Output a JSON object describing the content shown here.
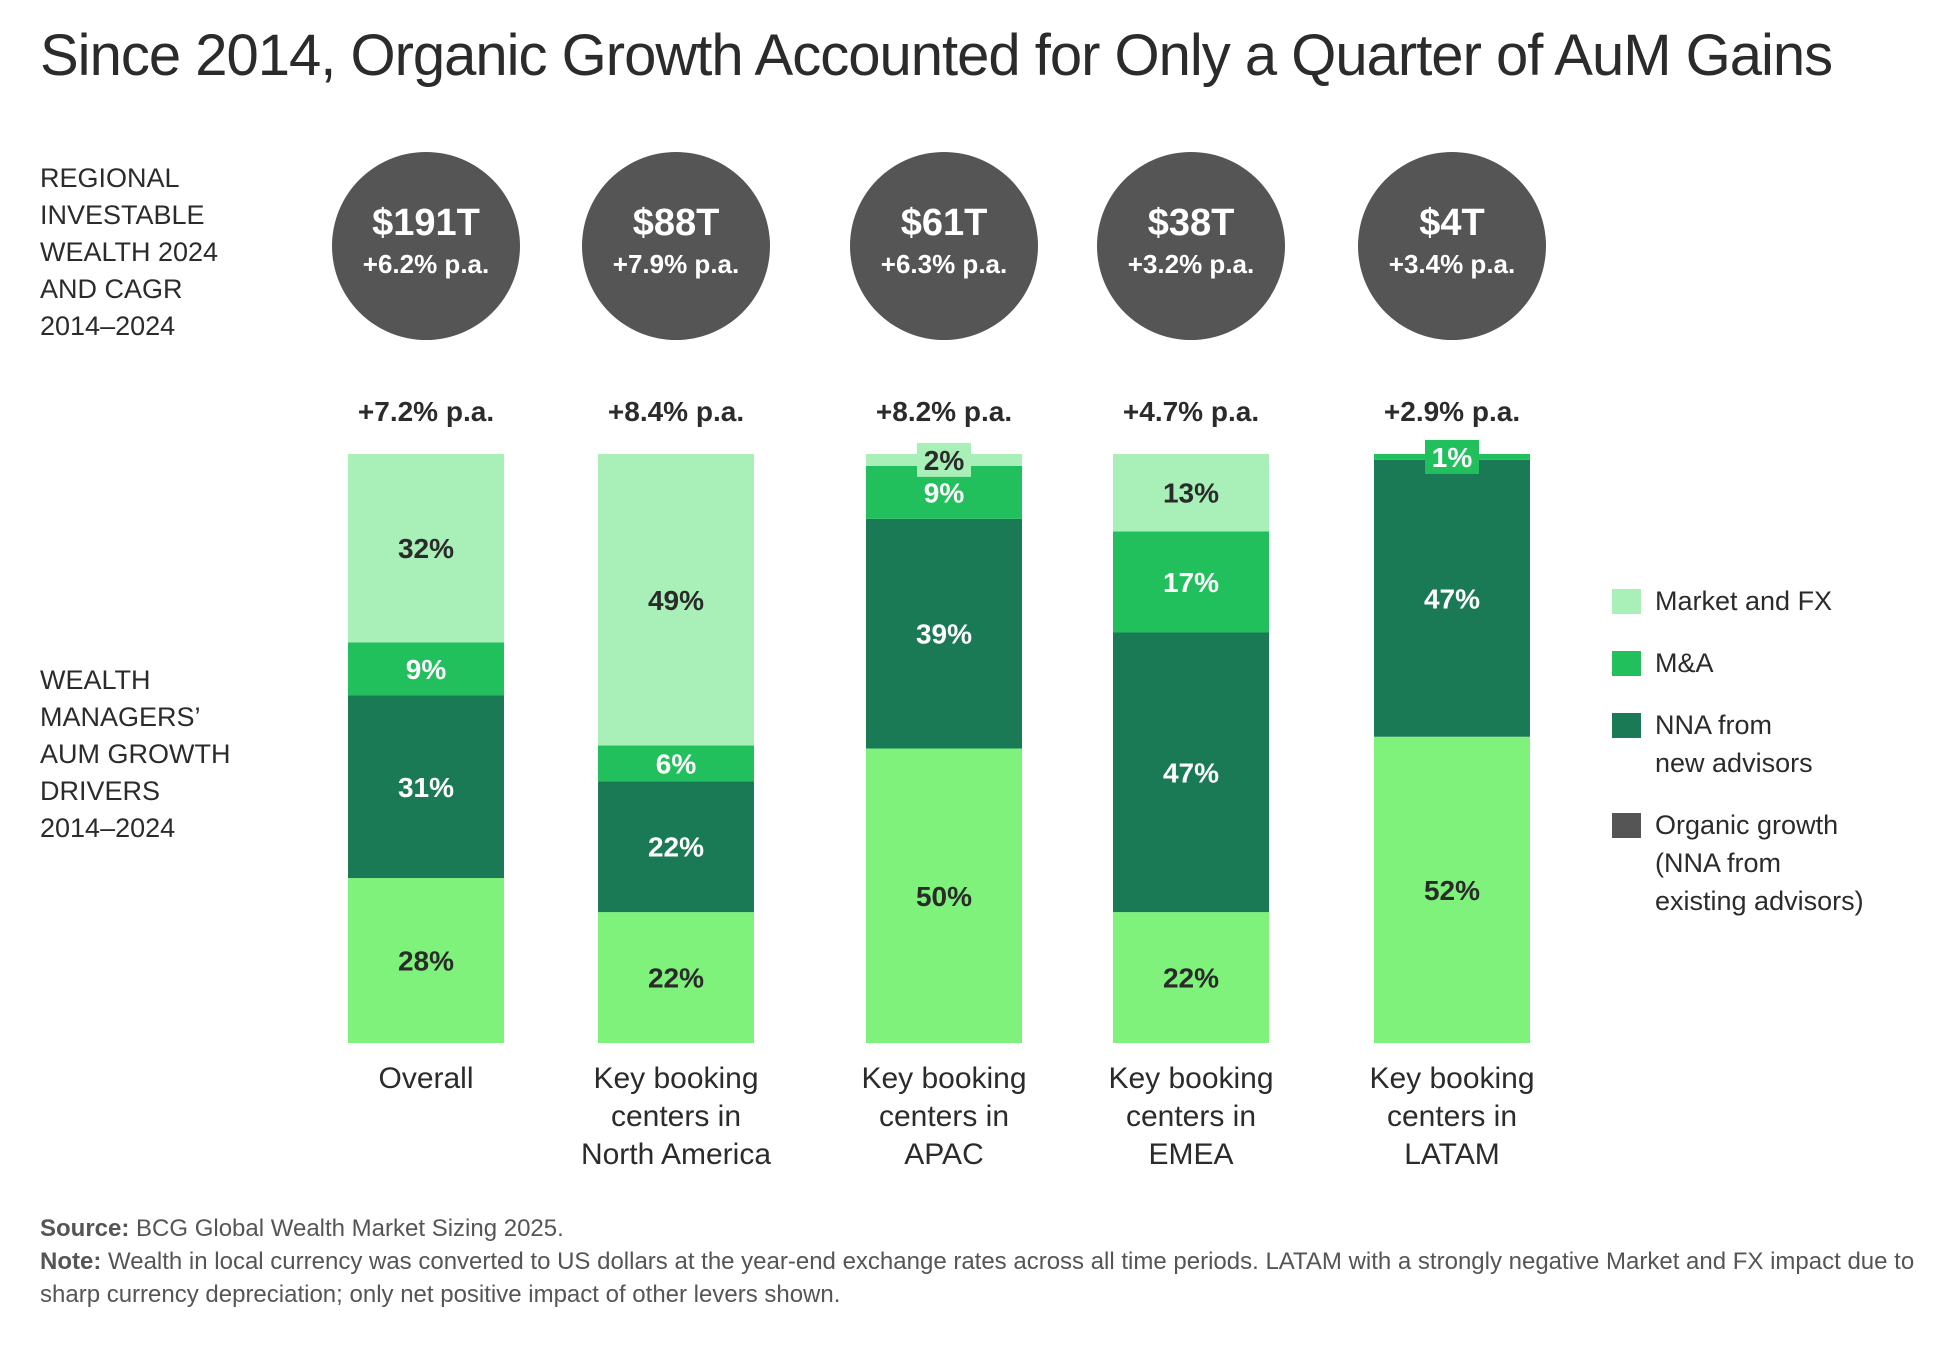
{
  "title": "Since 2014, Organic Growth Accounted for Only a Quarter of AuM Gains",
  "side_labels": {
    "wealth": [
      "REGIONAL",
      "INVESTABLE",
      "WEALTH 2024",
      "AND CAGR",
      "2014–2024"
    ],
    "drivers": [
      "WEALTH",
      "MANAGERS’",
      "AUM GROWTH",
      "DRIVERS",
      "2014–2024"
    ]
  },
  "regions": [
    {
      "wealth": "$191T",
      "wealth_cagr": "+6.2% p.a.",
      "aum_cagr": "+7.2% p.a.",
      "label": [
        "Overall"
      ]
    },
    {
      "wealth": "$88T",
      "wealth_cagr": "+7.9% p.a.",
      "aum_cagr": "+8.4% p.a.",
      "label": [
        "Key booking",
        "centers in",
        "North America"
      ]
    },
    {
      "wealth": "$61T",
      "wealth_cagr": "+6.3% p.a.",
      "aum_cagr": "+8.2% p.a.",
      "label": [
        "Key booking",
        "centers in",
        "APAC"
      ]
    },
    {
      "wealth": "$38T",
      "wealth_cagr": "+3.2% p.a.",
      "aum_cagr": "+4.7% p.a.",
      "label": [
        "Key booking",
        "centers in",
        "EMEA"
      ]
    },
    {
      "wealth": "$4T",
      "wealth_cagr": "+3.4% p.a.",
      "aum_cagr": "+2.9% p.a.",
      "label": [
        "Key booking",
        "centers in",
        "LATAM"
      ]
    }
  ],
  "colors": {
    "market_fx": "#a8f0b8",
    "ma": "#22c05c",
    "nna_new": "#1a7a55",
    "organic_legend": "#555555",
    "organic_bar": "#7ef27a"
  },
  "chart_data": {
    "type": "bar",
    "stacked": true,
    "title": "Since 2014, Organic Growth Accounted for Only a Quarter of AuM Gains",
    "categories": [
      "Overall",
      "Key booking centers in North America",
      "Key booking centers in APAC",
      "Key booking centers in EMEA",
      "Key booking centers in LATAM"
    ],
    "unit": "%",
    "legend_position": "right",
    "series": [
      {
        "key": "organic",
        "name": "Organic growth (NNA from existing advisors)",
        "values": [
          28,
          22,
          50,
          22,
          52
        ]
      },
      {
        "key": "nna_new",
        "name": "NNA from new advisors",
        "values": [
          31,
          22,
          39,
          47,
          47
        ]
      },
      {
        "key": "ma",
        "name": "M&A",
        "values": [
          9,
          6,
          9,
          17,
          1
        ]
      },
      {
        "key": "market_fx",
        "name": "Market and FX",
        "values": [
          32,
          49,
          2,
          13,
          0
        ]
      }
    ]
  },
  "legend": [
    {
      "key": "market_fx",
      "lines": [
        "Market and FX"
      ]
    },
    {
      "key": "ma",
      "lines": [
        "M&A"
      ]
    },
    {
      "key": "nna_new",
      "lines": [
        "NNA from",
        "new advisors"
      ]
    },
    {
      "key": "organic_legend",
      "lines": [
        "Organic growth",
        "(NNA from",
        "existing advisors)"
      ]
    }
  ],
  "footer": {
    "source_label": "Source:",
    "source_text": " BCG Global Wealth Market Sizing 2025.",
    "note_label": "Note:",
    "note_text": " Wealth in local currency was converted to US dollars at the year-end exchange rates across all time periods. LATAM with a strongly negative Market and FX impact due to sharp currency depreciation; only net positive impact of other levers shown."
  }
}
